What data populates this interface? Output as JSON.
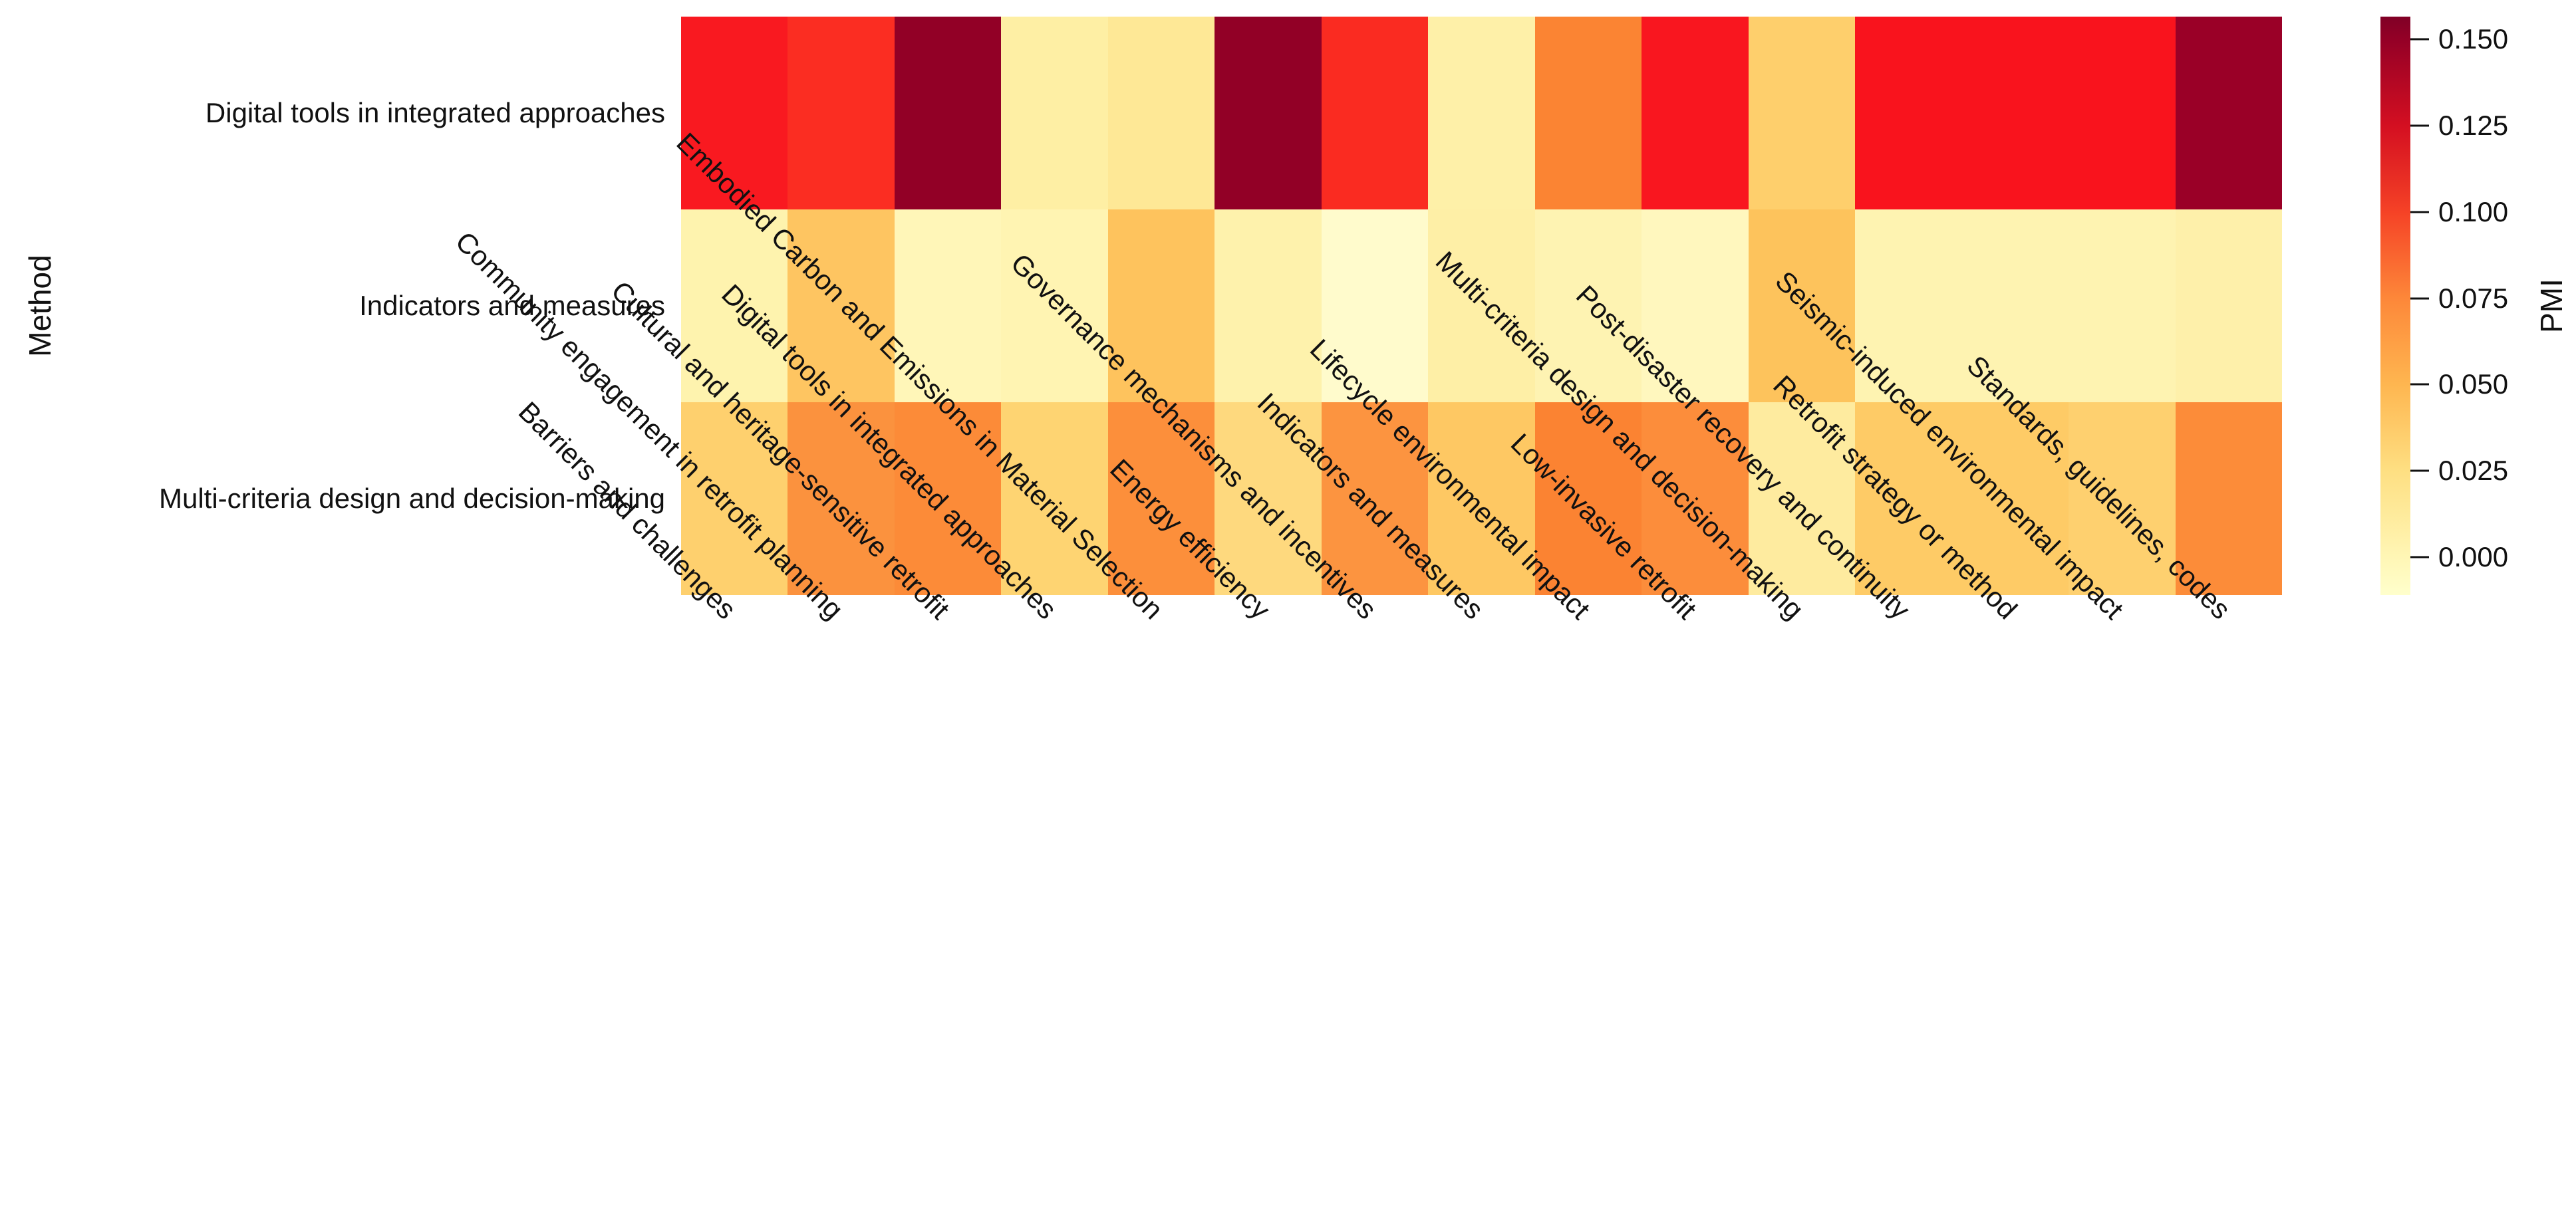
{
  "y_axis": {
    "label": "Method",
    "categories": [
      "Digital tools in integrated approaches",
      "Indicators and measures",
      "Multi-criteria design and decision-making"
    ]
  },
  "x_axis": {
    "categories": [
      "Barriers and challenges",
      "Community engagement in retrofit planning",
      "Cultural and heritage-sensitive retrofit",
      "Digital tools in integrated approaches",
      "Embodied Carbon and Emissions in Material Selection",
      "Energy efficiency",
      "Governance mechanisms and incentives",
      "Indicators and measures",
      "Lifecycle environmental impact",
      "Low-invasive retrofit",
      "Multi-criteria design and decision-making",
      "Post-disaster recovery and continuity",
      "Retrofit strategy or method",
      "Seismic-induced environmental impact",
      "Standards, guidelines, codes"
    ]
  },
  "colorbar": {
    "label": "PMI",
    "tick_labels": [
      "0.150",
      "0.125",
      "0.100",
      "0.075",
      "0.050",
      "0.025",
      "0.000"
    ],
    "tick_values": [
      0.15,
      0.125,
      0.1,
      0.075,
      0.05,
      0.025,
      0.0
    ],
    "top_color": "#800026",
    "bottom_color": "#ffffcc"
  },
  "chart_data": {
    "type": "heatmap",
    "title": "",
    "xlabel": "",
    "ylabel": "Method",
    "value_label": "PMI",
    "colormap": "YlOrRd",
    "vmin": -0.011,
    "vmax": 0.157,
    "legend_position": "right-colorbar",
    "grid": false,
    "rows": [
      "Digital tools in integrated approaches",
      "Indicators and measures",
      "Multi-criteria design and decision-making"
    ],
    "columns": [
      "Barriers and challenges",
      "Community engagement in retrofit planning",
      "Cultural and heritage-sensitive retrofit",
      "Digital tools in integrated approaches",
      "Embodied Carbon and Emissions in Material Selection",
      "Energy efficiency",
      "Governance mechanisms and incentives",
      "Indicators and measures",
      "Lifecycle environmental impact",
      "Low-invasive retrofit",
      "Multi-criteria design and decision-making",
      "Post-disaster recovery and continuity",
      "Retrofit strategy or method",
      "Seismic-induced environmental impact",
      "Standards, guidelines, codes"
    ],
    "values_pmi_estimated": [
      [
        0.117,
        0.108,
        0.151,
        0.008,
        0.013,
        0.151,
        0.107,
        0.007,
        0.076,
        0.117,
        0.036,
        0.118,
        0.118,
        0.118,
        0.147
      ],
      [
        0.003,
        0.041,
        -0.001,
        0.001,
        0.043,
        0.004,
        -0.009,
        0.008,
        0.002,
        -0.004,
        0.043,
        0.002,
        0.002,
        0.002,
        0.006
      ],
      [
        0.036,
        0.069,
        0.072,
        0.033,
        0.071,
        0.031,
        0.068,
        0.04,
        0.076,
        0.071,
        0.01,
        0.039,
        0.039,
        0.036,
        0.072
      ]
    ],
    "cell_colors": [
      [
        "#f91920",
        "#fb2d22",
        "#920026",
        "#feefa4",
        "#fee896",
        "#920026",
        "#fa2b21",
        "#fef0a8",
        "#fb8433",
        "#f9161f",
        "#fecf6c",
        "#f9131d",
        "#f9131d",
        "#f9131d",
        "#9a0027"
      ],
      [
        "#fef3ae",
        "#fec561",
        "#fff6b8",
        "#fff4b2",
        "#fec35d",
        "#fef2ac",
        "#fffbcc",
        "#feefa6",
        "#fef3b2",
        "#fff7be",
        "#fdc35c",
        "#fef3b1",
        "#fef3b1",
        "#fef3b1",
        "#fef0aa"
      ],
      [
        "#fed06e",
        "#fb923e",
        "#fc8b38",
        "#fed472",
        "#fc8f3b",
        "#fed97e",
        "#fc9440",
        "#fec863",
        "#fb8332",
        "#fc8d3b",
        "#feeb9f",
        "#fecb66",
        "#fecb66",
        "#fed06f",
        "#fc8c39"
      ]
    ]
  }
}
